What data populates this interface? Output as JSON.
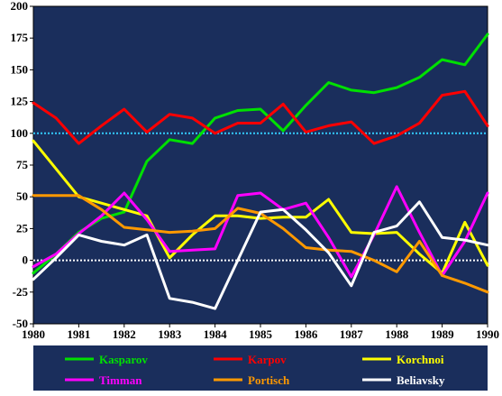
{
  "chart_data": {
    "type": "line",
    "xlim": [
      1980,
      1990
    ],
    "ylim": [
      -50,
      200
    ],
    "x_ticks": [
      "1980",
      "1981",
      "1982",
      "1983",
      "1984",
      "1985",
      "1986",
      "1987",
      "1988",
      "1989",
      "1990"
    ],
    "y_ticks": [
      "-50",
      "-25",
      "0",
      "25",
      "50",
      "75",
      "100",
      "125",
      "150",
      "175",
      "200"
    ],
    "reference_lines": [
      {
        "y": 100,
        "color": "#33ccff"
      },
      {
        "y": 0,
        "color": "#ffffff"
      }
    ],
    "plot_background": "#1a2e5c",
    "legend_background": "#1a2e5c",
    "legend_placement": "bottom",
    "series": [
      {
        "name": "Kasparov",
        "color": "#00e000",
        "x": [
          1980,
          1980.5,
          1981,
          1981.5,
          1982,
          1982.5,
          1983,
          1983.5,
          1984,
          1984.5,
          1985,
          1985.5,
          1986,
          1986.5,
          1987,
          1987.5,
          1988,
          1988.5,
          1989,
          1989.5,
          1990
        ],
        "y": [
          -10,
          5,
          22,
          33,
          38,
          78,
          95,
          92,
          112,
          118,
          119,
          102,
          122,
          140,
          134,
          132,
          136,
          144,
          158,
          154,
          178
        ]
      },
      {
        "name": "Karpov",
        "color": "#ff0000",
        "x": [
          1980,
          1980.5,
          1981,
          1981.5,
          1982,
          1982.5,
          1983,
          1983.5,
          1984,
          1984.5,
          1985,
          1985.5,
          1986,
          1986.5,
          1987,
          1987.5,
          1988,
          1988.5,
          1989,
          1989.5,
          1990
        ],
        "y": [
          124,
          112,
          92,
          106,
          119,
          101,
          115,
          112,
          100,
          108,
          108,
          123,
          101,
          106,
          109,
          92,
          98,
          108,
          130,
          133,
          106
        ]
      },
      {
        "name": "Korchnoi",
        "color": "#ffff00",
        "x": [
          1980,
          1980.5,
          1981,
          1981.5,
          1982,
          1982.5,
          1983,
          1983.5,
          1984,
          1984.5,
          1985,
          1985.5,
          1986,
          1986.5,
          1987,
          1987.5,
          1988,
          1988.5,
          1989,
          1989.5,
          1990
        ],
        "y": [
          94,
          72,
          50,
          45,
          40,
          35,
          2,
          20,
          35,
          35,
          33,
          34,
          34,
          48,
          22,
          21,
          22,
          5,
          -10,
          30,
          -4
        ]
      },
      {
        "name": "Timman",
        "color": "#ff00ff",
        "x": [
          1980,
          1980.5,
          1981,
          1981.5,
          1982,
          1982.5,
          1983,
          1983.5,
          1984,
          1984.5,
          1985,
          1985.5,
          1986,
          1986.5,
          1987,
          1987.5,
          1988,
          1988.5,
          1989,
          1989.5,
          1990
        ],
        "y": [
          -5,
          5,
          21,
          35,
          53,
          32,
          7,
          8,
          9,
          51,
          53,
          40,
          45,
          18,
          -13,
          20,
          58,
          22,
          -12,
          15,
          53
        ]
      },
      {
        "name": "Portisch",
        "color": "#ff9900",
        "x": [
          1980,
          1980.5,
          1981,
          1981.5,
          1982,
          1982.5,
          1983,
          1983.5,
          1984,
          1984.5,
          1985,
          1985.5,
          1986,
          1986.5,
          1987,
          1987.5,
          1988,
          1988.5,
          1989,
          1989.5,
          1990
        ],
        "y": [
          51,
          51,
          51,
          40,
          26,
          24,
          22,
          23,
          25,
          41,
          37,
          25,
          10,
          8,
          7,
          0,
          -9,
          15,
          -12,
          -18,
          -25
        ]
      },
      {
        "name": "Beliavsky",
        "color": "#ffffff",
        "x": [
          1980,
          1980.5,
          1981,
          1981.5,
          1982,
          1982.5,
          1983,
          1983.5,
          1984,
          1984.5,
          1985,
          1985.5,
          1986,
          1986.5,
          1987,
          1987.5,
          1988,
          1988.5,
          1989,
          1989.5,
          1990
        ],
        "y": [
          -15,
          2,
          20,
          15,
          12,
          20,
          -30,
          -33,
          -38,
          0,
          38,
          40,
          24,
          6,
          -20,
          22,
          27,
          46,
          18,
          16,
          12
        ]
      }
    ]
  }
}
